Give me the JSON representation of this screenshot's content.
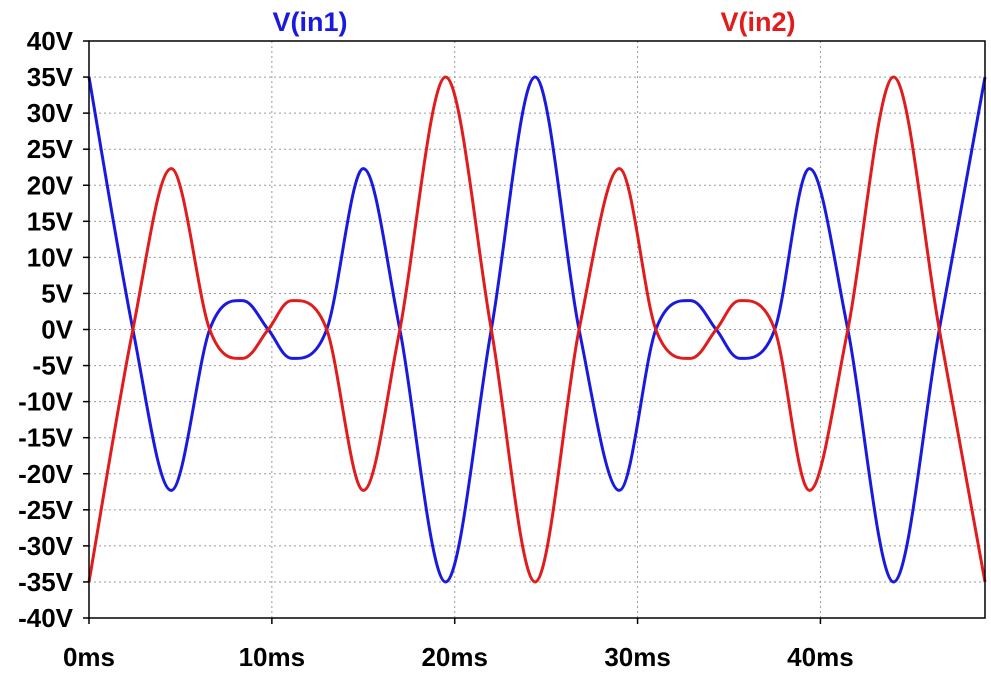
{
  "chart_data": {
    "type": "line",
    "title": "",
    "xlabel": "",
    "ylabel": "",
    "xlim": [
      0,
      49
    ],
    "ylim": [
      -40,
      40
    ],
    "grid": true,
    "legend_placement": "top",
    "x_ticks": [
      "0ms",
      "10ms",
      "20ms",
      "30ms",
      "40ms"
    ],
    "x_tick_values": [
      0,
      10,
      20,
      30,
      40
    ],
    "y_ticks": [
      "40V",
      "35V",
      "30V",
      "25V",
      "20V",
      "15V",
      "10V",
      "5V",
      "0V",
      "-5V",
      "-10V",
      "-15V",
      "-20V",
      "-25V",
      "-30V",
      "-35V",
      "-40V"
    ],
    "y_tick_values": [
      40,
      35,
      30,
      25,
      20,
      15,
      10,
      5,
      0,
      -5,
      -10,
      -15,
      -20,
      -25,
      -30,
      -35,
      -40
    ],
    "x_unit": "ms",
    "y_unit": "V",
    "series": [
      {
        "name": "V(in1)",
        "color": "#1a1adf",
        "x": [
          0,
          2.4,
          4.5,
          6.6,
          8.4,
          9.8,
          11.1,
          13,
          15,
          17,
          19.5,
          22,
          24.4,
          26.8,
          29,
          31,
          32.9,
          34.3,
          35.6,
          37.5,
          39.4,
          41.5,
          44,
          46.5,
          49
        ],
        "y": [
          35,
          0,
          -22.3,
          0,
          4,
          0,
          -4,
          0,
          22.3,
          0,
          -35,
          0,
          35,
          0,
          -22.3,
          0,
          4,
          0,
          -4,
          0,
          22.3,
          0,
          -35,
          0,
          35
        ]
      },
      {
        "name": "V(in2)",
        "color": "#e01c1c",
        "x": [
          0,
          2.4,
          4.5,
          6.6,
          8.4,
          9.8,
          11.1,
          13,
          15,
          17,
          19.5,
          22,
          24.4,
          26.8,
          29,
          31,
          32.9,
          34.3,
          35.6,
          37.5,
          39.4,
          41.5,
          44,
          46.5,
          49
        ],
        "y": [
          -35,
          0,
          22.3,
          0,
          -4,
          0,
          4,
          0,
          -22.3,
          0,
          35,
          0,
          -35,
          0,
          22.3,
          0,
          -4,
          0,
          4,
          0,
          -22.3,
          0,
          35,
          0,
          -35
        ]
      }
    ]
  }
}
